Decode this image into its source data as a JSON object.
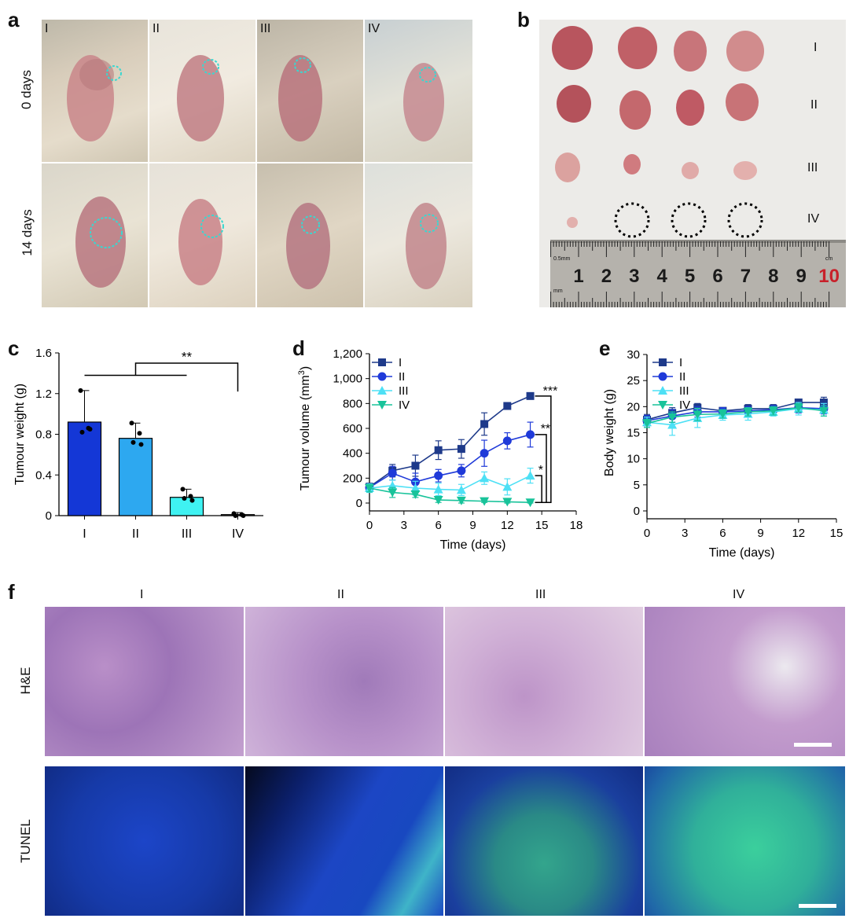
{
  "panels": {
    "a": "a",
    "b": "b",
    "c": "c",
    "d": "d",
    "e": "e",
    "f": "f"
  },
  "panel_a": {
    "group_labels": [
      "I",
      "II",
      "III",
      "IV"
    ],
    "row_labels": [
      "0 days",
      "14 days"
    ]
  },
  "panel_b": {
    "group_labels": [
      "I",
      "II",
      "III",
      "IV"
    ],
    "ruler_numbers": [
      "1",
      "2",
      "3",
      "4",
      "5",
      "6",
      "7",
      "8",
      "9",
      "10"
    ],
    "ruler_unit": "0.5mm",
    "ruler_unit2": "mm",
    "ruler_unit3": "cm"
  },
  "panel_f": {
    "group_labels": [
      "I",
      "II",
      "III",
      "IV"
    ],
    "row_labels": [
      "H&E",
      "TUNEL"
    ]
  },
  "colors": {
    "I": "#1437d6",
    "II": "#2da8f0",
    "III": "#3ff2f2",
    "IV": "#ffffff",
    "seriesI": "#1e3a8a",
    "seriesII": "#1f3ad9",
    "seriesIII": "#4de0f5",
    "seriesIV": "#18c39a"
  },
  "chart_data": [
    {
      "type": "bar",
      "panel": "c",
      "categories": [
        "I",
        "II",
        "III",
        "IV"
      ],
      "values": [
        0.92,
        0.76,
        0.18,
        0.01
      ],
      "errors": [
        0.31,
        0.15,
        0.08,
        0.02
      ],
      "points": [
        [
          1.23,
          0.86,
          0.82,
          0.85
        ],
        [
          0.91,
          0.81,
          0.72,
          0.7
        ],
        [
          0.26,
          0.19,
          0.17,
          0.15
        ],
        [
          0.02,
          0.01,
          0.0,
          0.0
        ]
      ],
      "ylabel": "Tumour weight (g)",
      "ylim": [
        0,
        1.6
      ],
      "yticks": [
        "0",
        "0.4",
        "0.8",
        "1.2",
        "1.6"
      ],
      "significance": [
        "**"
      ]
    },
    {
      "type": "line",
      "panel": "d",
      "xlabel": "Time (days)",
      "ylabel_main": "Tumour volume (mm",
      "ylabel_sup": "3",
      "ylabel_end": ")",
      "xlim": [
        0,
        18
      ],
      "ylim": [
        0,
        1200
      ],
      "xticks": [
        "0",
        "3",
        "6",
        "9",
        "12",
        "15",
        "18"
      ],
      "yticks": [
        "0",
        "200",
        "400",
        "600",
        "800",
        "1,000",
        "1,200"
      ],
      "x": [
        0,
        2,
        4,
        6,
        8,
        10,
        12,
        14
      ],
      "series": [
        {
          "name": "I",
          "values": [
            130,
            260,
            300,
            425,
            435,
            635,
            780,
            860
          ],
          "errors": [
            30,
            50,
            85,
            75,
            75,
            90,
            20,
            25
          ]
        },
        {
          "name": "II",
          "values": [
            125,
            240,
            170,
            220,
            260,
            400,
            500,
            550
          ],
          "errors": [
            30,
            55,
            70,
            50,
            50,
            105,
            65,
            100
          ]
        },
        {
          "name": "III",
          "values": [
            120,
            140,
            120,
            110,
            105,
            200,
            130,
            220
          ],
          "errors": [
            35,
            45,
            55,
            50,
            45,
            50,
            65,
            60
          ]
        },
        {
          "name": "IV",
          "values": [
            120,
            85,
            70,
            25,
            20,
            15,
            10,
            5
          ],
          "errors": [
            30,
            40,
            25,
            20,
            20,
            10,
            10,
            5
          ]
        }
      ],
      "significance": [
        "***",
        "**",
        "*"
      ]
    },
    {
      "type": "line",
      "panel": "e",
      "xlabel": "Time (days)",
      "ylabel": "Body weight (g)",
      "xlim": [
        0,
        15
      ],
      "ylim": [
        0,
        30
      ],
      "xticks": [
        "0",
        "3",
        "6",
        "9",
        "12",
        "15"
      ],
      "yticks": [
        "0",
        "5",
        "10",
        "15",
        "20",
        "25",
        "30"
      ],
      "x": [
        0,
        2,
        4,
        6,
        8,
        10,
        12,
        14
      ],
      "series": [
        {
          "name": "I",
          "values": [
            17.5,
            18.8,
            19.8,
            19.2,
            19.6,
            19.6,
            20.8,
            20.8
          ],
          "errors": [
            1.0,
            1.0,
            0.8,
            0.6,
            0.8,
            0.8,
            0.6,
            1.0
          ]
        },
        {
          "name": "II",
          "values": [
            17.3,
            18.2,
            19.0,
            19.0,
            19.2,
            19.4,
            19.8,
            19.6
          ],
          "errors": [
            1.0,
            1.2,
            1.0,
            0.8,
            0.8,
            0.8,
            1.0,
            1.0
          ]
        },
        {
          "name": "III",
          "values": [
            17.0,
            16.5,
            17.8,
            18.4,
            18.6,
            19.0,
            19.6,
            19.4
          ],
          "errors": [
            1.0,
            2.0,
            1.8,
            1.0,
            1.2,
            0.8,
            1.2,
            1.2
          ]
        },
        {
          "name": "IV",
          "values": [
            16.8,
            18.0,
            18.5,
            18.6,
            19.0,
            19.2,
            19.8,
            19.2
          ],
          "errors": [
            0.8,
            1.0,
            1.2,
            0.8,
            0.8,
            0.8,
            0.8,
            1.0
          ]
        }
      ]
    }
  ]
}
